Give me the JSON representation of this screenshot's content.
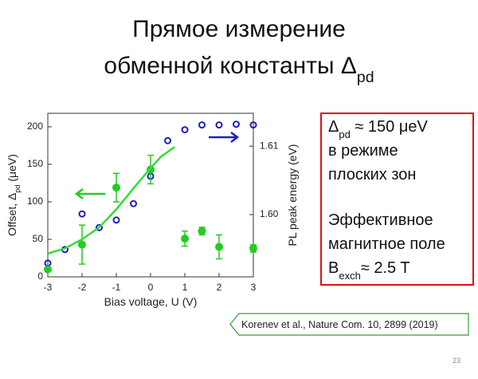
{
  "slide": {
    "title_line1": "Прямое измерение",
    "title_line2": [
      "обменной константы Δ",
      "pd"
    ]
  },
  "chart_data": {
    "type": "scatter",
    "xlabel": "Bias voltage, U (V)",
    "ylabel": [
      "Offset, Δ",
      "pd",
      " (μeV)"
    ],
    "y2label": "PL peak energy (eV)",
    "xlim": [
      -3,
      3
    ],
    "xticks": [
      -3,
      -2,
      -1,
      0,
      1,
      2,
      3
    ],
    "ylim": [
      0,
      218
    ],
    "yticks": [
      0,
      50,
      100,
      150,
      200
    ],
    "y2lim": [
      1.5909,
      1.6148
    ],
    "y2ticks": [
      {
        "value": 1.6,
        "label": "1.60"
      },
      1.61
    ],
    "series": [
      {
        "color": "#1f1fbf",
        "marker": "open-circle",
        "axis": "y2",
        "x": [
          -3,
          -2.5,
          -2,
          -1.5,
          -1,
          -0.5,
          0,
          0.5,
          1,
          1.5,
          2,
          2.5,
          3
        ],
        "values": [
          1.5929,
          1.5949,
          1.6001,
          1.5981,
          1.5992,
          1.6016,
          1.6056,
          1.6108,
          1.6124,
          1.6131,
          1.6131,
          1.6132,
          1.6131
        ]
      },
      {
        "color": "#22cc22",
        "marker": "filled-circle",
        "x": [
          -3,
          -2,
          -1,
          0,
          1,
          1.5,
          2,
          3
        ],
        "values": [
          10,
          43,
          119,
          143,
          51,
          61,
          40,
          38
        ],
        "errors": [
          0,
          26,
          19,
          19,
          10,
          5,
          16,
          5
        ]
      },
      {
        "color": "#33dd33",
        "style": "line",
        "x": [
          -3,
          -2.5,
          -2,
          -1.5,
          -1,
          -0.5,
          0,
          0.3,
          0.7
        ],
        "values": [
          31,
          38,
          50,
          66,
          90,
          118,
          145,
          160,
          173
        ]
      }
    ]
  },
  "box": {
    "lines": [
      [
        "Δ",
        "pd",
        " ≈ 150 μeV"
      ],
      [
        "в режиме"
      ],
      [
        "плоских зон"
      ],
      [
        "Эффективное"
      ],
      [
        "магнитное поле"
      ],
      [
        "B",
        "exch",
        "≈ 2.5 T"
      ]
    ]
  },
  "reference": "Korenev et al., Nature Com. 10, 2899 (2019)",
  "page_number": "23"
}
